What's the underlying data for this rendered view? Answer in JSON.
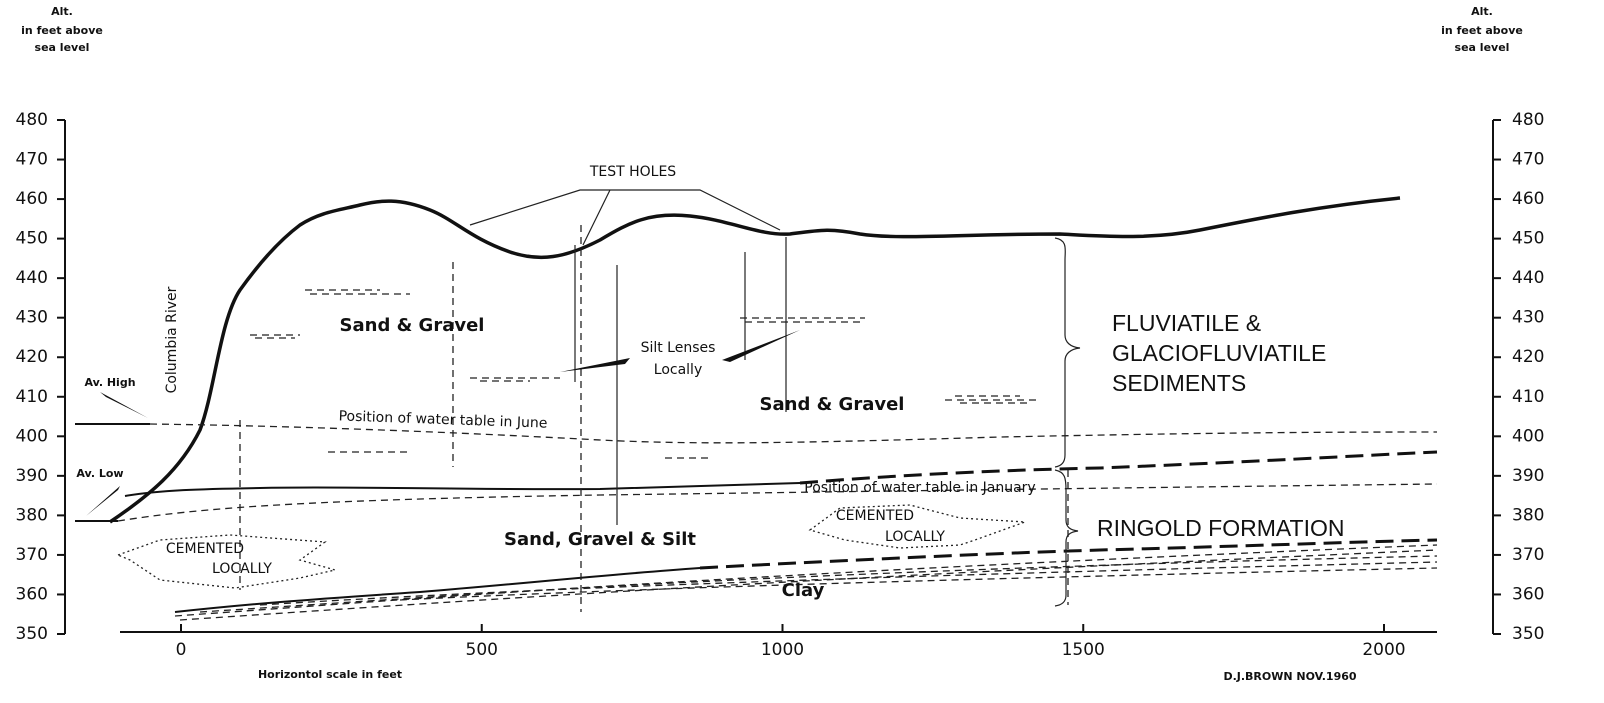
{
  "left_axis": {
    "title": [
      "Alt.",
      "in feet above",
      "sea level"
    ],
    "ticks": [
      480,
      470,
      460,
      450,
      440,
      430,
      420,
      410,
      400,
      390,
      380,
      370,
      360,
      350
    ]
  },
  "right_axis": {
    "title": [
      "Alt.",
      "in feet above",
      "sea level"
    ],
    "ticks": [
      480,
      470,
      460,
      450,
      440,
      430,
      420,
      410,
      400,
      390,
      380,
      370,
      360,
      350
    ]
  },
  "x_axis": {
    "title": "Horizontol scale in feet",
    "ticks": [
      0,
      500,
      1000,
      1500,
      2000
    ]
  },
  "credit": "D.J.BROWN   NOV.1960",
  "labels": {
    "test_holes": "TEST HOLES",
    "river": "Columbia   River",
    "av_high": "Av. High",
    "av_low": "Av. Low",
    "sand_gravel_1": "Sand & Gravel",
    "sand_gravel_2": "Sand & Gravel",
    "silt_lenses": [
      "Silt Lenses",
      "Locally"
    ],
    "june": "Position of water table in June",
    "january": "Position of water table in January",
    "cemented_1": [
      "CEMENTED",
      "LOCALLY"
    ],
    "cemented_2": [
      "CEMENTED",
      "LOCALLY"
    ],
    "sand_gravel_silt": "Sand, Gravel & Silt",
    "clay": "Clay",
    "fluviatile": [
      "FLUVIATILE  &",
      "GLACIOFLUVIATILE",
      "SEDIMENTS"
    ],
    "ringold": "RINGOLD  FORMATION"
  }
}
